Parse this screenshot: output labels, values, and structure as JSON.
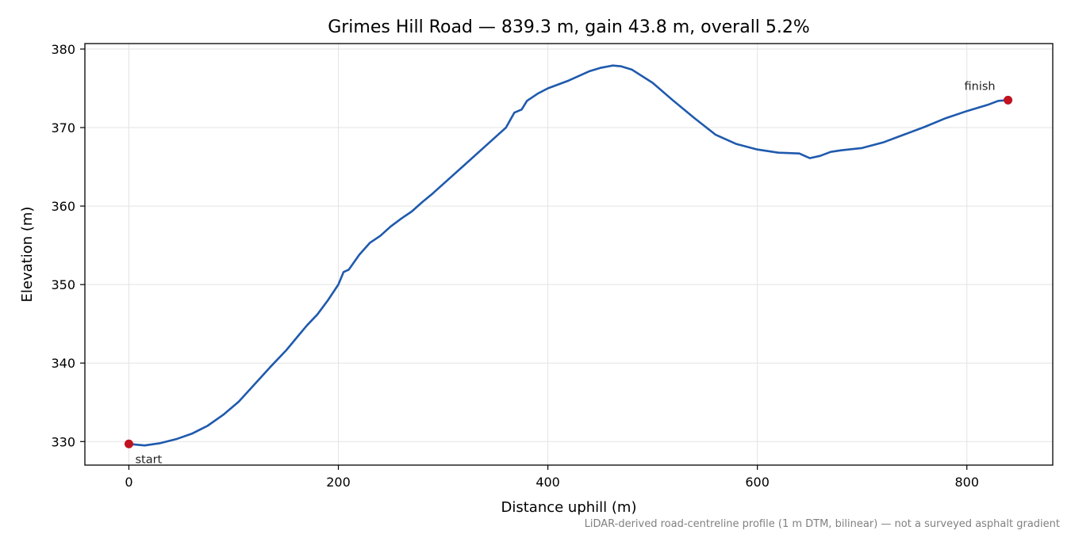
{
  "chart_data": {
    "type": "line",
    "title": "Grimes Hill Road — 839.3 m, gain 43.8 m, overall 5.2%",
    "xlabel": "Distance uphill (m)",
    "ylabel": "Elevation (m)",
    "footnote": "LiDAR-derived road-centreline profile (1 m DTM, bilinear) — not a surveyed asphalt gradient",
    "xlim": [
      -42,
      882
    ],
    "ylim": [
      327,
      380.7
    ],
    "xticks": [
      0,
      200,
      400,
      600,
      800
    ],
    "yticks": [
      330,
      340,
      350,
      360,
      370,
      380
    ],
    "grid": true,
    "line_color": "#1f5aad",
    "marker_color": "#c1121f",
    "series": [
      {
        "x": [
          0,
          15,
          30,
          45,
          60,
          75,
          90,
          105,
          120,
          135,
          150,
          160,
          170,
          180,
          190,
          200,
          205,
          210,
          220,
          230,
          240,
          250,
          260,
          270,
          280,
          290,
          300,
          320,
          340,
          360,
          368,
          375,
          380,
          390,
          400,
          420,
          440,
          450,
          462,
          470,
          480,
          500,
          520,
          540,
          560,
          580,
          600,
          620,
          640,
          650,
          660,
          670,
          680,
          700,
          720,
          740,
          760,
          780,
          800,
          820,
          830,
          839.3
        ],
        "y": [
          329.7,
          329.5,
          329.8,
          330.3,
          331.0,
          332.0,
          333.4,
          335.1,
          337.3,
          339.5,
          341.6,
          343.2,
          344.8,
          346.2,
          348.0,
          350.0,
          351.6,
          351.9,
          353.8,
          355.3,
          356.2,
          357.4,
          358.4,
          359.3,
          360.5,
          361.6,
          362.8,
          365.2,
          367.6,
          370.0,
          371.9,
          372.3,
          373.4,
          374.3,
          375.0,
          376.0,
          377.2,
          377.6,
          377.9,
          377.8,
          377.4,
          375.7,
          373.4,
          371.2,
          369.1,
          367.9,
          367.2,
          366.8,
          366.7,
          366.1,
          366.4,
          366.9,
          367.1,
          367.4,
          368.1,
          369.1,
          370.1,
          371.2,
          372.1,
          372.9,
          373.4,
          373.5
        ]
      }
    ],
    "annotations": [
      {
        "text": "start",
        "x": 0,
        "y": 329.7
      },
      {
        "text": "finish",
        "x": 839.3,
        "y": 373.5
      }
    ]
  }
}
